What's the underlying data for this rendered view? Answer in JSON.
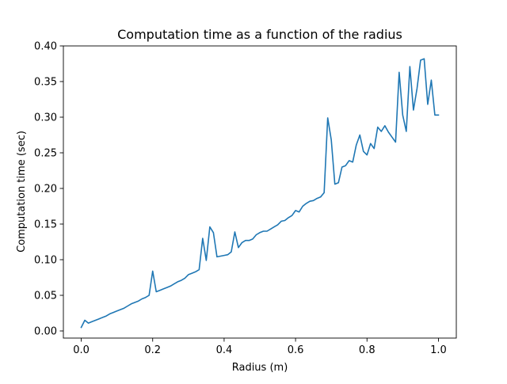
{
  "chart_data": {
    "type": "line",
    "title": "Computation time as a function of the radius",
    "xlabel": "Radius (m)",
    "ylabel": "Computation time (sec)",
    "xlim": [
      -0.05,
      1.05
    ],
    "ylim": [
      -0.01,
      0.4
    ],
    "xticks": [
      0.0,
      0.2,
      0.4,
      0.6,
      0.8,
      1.0
    ],
    "xtick_labels": [
      "0.0",
      "0.2",
      "0.4",
      "0.6",
      "0.8",
      "1.0"
    ],
    "yticks": [
      0.0,
      0.05,
      0.1,
      0.15,
      0.2,
      0.25,
      0.3,
      0.35,
      0.4
    ],
    "ytick_labels": [
      "0.00",
      "0.05",
      "0.10",
      "0.15",
      "0.20",
      "0.25",
      "0.30",
      "0.35",
      "0.40"
    ],
    "grid": false,
    "series": [
      {
        "color": "#1f77b4",
        "x": [
          0.0,
          0.01,
          0.02,
          0.03,
          0.04,
          0.05,
          0.06,
          0.07,
          0.08,
          0.09,
          0.1,
          0.11,
          0.12,
          0.13,
          0.14,
          0.15,
          0.16,
          0.17,
          0.18,
          0.19,
          0.2,
          0.21,
          0.22,
          0.23,
          0.24,
          0.25,
          0.26,
          0.27,
          0.28,
          0.29,
          0.3,
          0.31,
          0.32,
          0.33,
          0.34,
          0.35,
          0.36,
          0.37,
          0.38,
          0.39,
          0.4,
          0.41,
          0.42,
          0.43,
          0.44,
          0.45,
          0.46,
          0.47,
          0.48,
          0.49,
          0.5,
          0.51,
          0.52,
          0.53,
          0.54,
          0.55,
          0.56,
          0.57,
          0.58,
          0.59,
          0.6,
          0.61,
          0.62,
          0.63,
          0.64,
          0.65,
          0.66,
          0.67,
          0.68,
          0.69,
          0.7,
          0.71,
          0.72,
          0.73,
          0.74,
          0.75,
          0.76,
          0.77,
          0.78,
          0.79,
          0.8,
          0.81,
          0.82,
          0.83,
          0.84,
          0.85,
          0.86,
          0.87,
          0.88,
          0.89,
          0.9,
          0.91,
          0.92,
          0.93,
          0.94,
          0.95,
          0.96,
          0.97,
          0.98,
          0.99,
          1.0
        ],
        "y": [
          0.005,
          0.015,
          0.011,
          0.013,
          0.015,
          0.017,
          0.019,
          0.021,
          0.024,
          0.026,
          0.028,
          0.03,
          0.032,
          0.035,
          0.038,
          0.04,
          0.042,
          0.045,
          0.047,
          0.05,
          0.084,
          0.055,
          0.057,
          0.059,
          0.061,
          0.063,
          0.066,
          0.069,
          0.071,
          0.074,
          0.079,
          0.081,
          0.083,
          0.086,
          0.13,
          0.099,
          0.146,
          0.138,
          0.104,
          0.105,
          0.106,
          0.107,
          0.111,
          0.139,
          0.117,
          0.124,
          0.127,
          0.127,
          0.129,
          0.135,
          0.138,
          0.14,
          0.14,
          0.143,
          0.146,
          0.149,
          0.154,
          0.155,
          0.159,
          0.162,
          0.169,
          0.167,
          0.175,
          0.179,
          0.182,
          0.183,
          0.186,
          0.188,
          0.194,
          0.299,
          0.268,
          0.206,
          0.208,
          0.23,
          0.232,
          0.239,
          0.237,
          0.261,
          0.275,
          0.252,
          0.247,
          0.263,
          0.256,
          0.286,
          0.28,
          0.288,
          0.279,
          0.272,
          0.265,
          0.363,
          0.303,
          0.28,
          0.371,
          0.31,
          0.34,
          0.38,
          0.382,
          0.318,
          0.352,
          0.303,
          0.303
        ]
      }
    ]
  }
}
